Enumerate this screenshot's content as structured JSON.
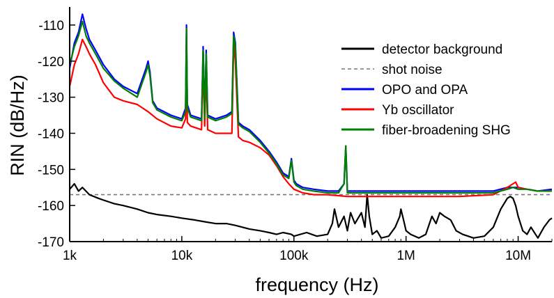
{
  "chart_data": {
    "type": "line",
    "title": "",
    "xlabel": "frequency (Hz)",
    "ylabel": "RIN (dB/Hz)",
    "x_scale": "log",
    "xlim": [
      1000,
      20000000
    ],
    "ylim": [
      -170,
      -105
    ],
    "x_ticks": [
      {
        "value": 1000,
        "label": "1k"
      },
      {
        "value": 10000,
        "label": "10k"
      },
      {
        "value": 100000,
        "label": "100k"
      },
      {
        "value": 1000000,
        "label": "1M"
      },
      {
        "value": 10000000,
        "label": "10M"
      }
    ],
    "y_ticks": [
      {
        "value": -110,
        "label": "-110"
      },
      {
        "value": -120,
        "label": "-120"
      },
      {
        "value": -130,
        "label": "-130"
      },
      {
        "value": -140,
        "label": "-140"
      },
      {
        "value": -150,
        "label": "-150"
      },
      {
        "value": -160,
        "label": "-160"
      },
      {
        "value": -170,
        "label": "-170"
      }
    ],
    "grid": false,
    "legend_position": "top-right",
    "series": [
      {
        "name": "detector background",
        "color": "#000000",
        "style": "solid",
        "x": [
          1000,
          1100,
          1200,
          1300,
          1500,
          1800,
          2000,
          2500,
          3000,
          4000,
          5000,
          6000,
          8000,
          10000,
          13000,
          16000,
          20000,
          25000,
          30000,
          40000,
          50000,
          60000,
          70000,
          80000,
          95000,
          100000,
          130000,
          160000,
          200000,
          220000,
          230000,
          250000,
          280000,
          300000,
          320000,
          350000,
          400000,
          430000,
          450000,
          470000,
          500000,
          550000,
          600000,
          700000,
          800000,
          880000,
          900000,
          950000,
          1000000,
          1100000,
          1300000,
          1500000,
          1700000,
          1850000,
          2000000,
          2200000,
          2500000,
          2800000,
          3200000,
          4000000,
          5000000,
          6000000,
          7000000,
          8000000,
          8500000,
          9000000,
          9500000,
          10000000,
          11000000,
          12000000,
          13000000,
          15000000,
          17000000,
          19000000,
          20000000
        ],
        "values": [
          -155.5,
          -154,
          -156,
          -155,
          -157,
          -158,
          -158.5,
          -159.5,
          -160,
          -161,
          -162,
          -162.5,
          -163,
          -163.5,
          -164,
          -164.5,
          -165,
          -165,
          -165.5,
          -166.5,
          -167,
          -167.5,
          -168,
          -167.5,
          -168,
          -168.5,
          -167.5,
          -168.5,
          -168,
          -165,
          -161,
          -166,
          -163,
          -167,
          -162,
          -165,
          -162,
          -166,
          -157,
          -163,
          -168,
          -167,
          -169,
          -168.5,
          -166,
          -163,
          -161,
          -164,
          -167,
          -168,
          -169,
          -168,
          -163,
          -165,
          -162,
          -163,
          -164,
          -167,
          -168,
          -169,
          -168.5,
          -166,
          -161,
          -158,
          -157.5,
          -158,
          -160,
          -163,
          -167,
          -168,
          -166,
          -169,
          -166,
          -164,
          -163.5
        ]
      },
      {
        "name": "shot noise",
        "color": "#777777",
        "style": "dashed",
        "x": [
          1000,
          20000000
        ],
        "values": [
          -157,
          -157
        ]
      },
      {
        "name": "OPO and OPA",
        "color": "#0000ff",
        "style": "solid",
        "x": [
          1000,
          1100,
          1200,
          1300,
          1400,
          1500,
          1700,
          2000,
          2500,
          3000,
          4000,
          4800,
          5000,
          5200,
          5500,
          6000,
          8000,
          10000,
          10800,
          11000,
          11200,
          12000,
          15000,
          15500,
          16000,
          16500,
          17000,
          20000,
          25000,
          28000,
          29000,
          30000,
          32000,
          35000,
          40000,
          50000,
          60000,
          70000,
          80000,
          90000,
          95000,
          100000,
          105000,
          120000,
          150000,
          200000,
          250000,
          280000,
          290000,
          300000,
          350000,
          400000,
          450000,
          500000,
          600000,
          800000,
          1000000,
          2000000,
          4000000,
          6000000,
          8000000,
          9000000,
          10000000,
          12000000,
          15000000,
          20000000
        ],
        "values": [
          -122,
          -115,
          -112,
          -107,
          -111,
          -114,
          -117,
          -121,
          -125,
          -127,
          -129,
          -122,
          -120,
          -123,
          -131,
          -133,
          -135,
          -136,
          -133,
          -110,
          -132,
          -135,
          -136,
          -116,
          -135,
          -117,
          -135,
          -136,
          -135,
          -134,
          -112,
          -115,
          -137,
          -138,
          -139,
          -142,
          -145,
          -148,
          -151,
          -152,
          -147,
          -153,
          -154,
          -155,
          -155.5,
          -156,
          -156,
          -154,
          -143.5,
          -156,
          -156,
          -156,
          -156,
          -156,
          -156,
          -156,
          -156,
          -156,
          -156,
          -156,
          -155,
          -155,
          -155,
          -155.5,
          -156,
          -155.5
        ]
      },
      {
        "name": "Yb oscillator",
        "color": "#ff0000",
        "style": "solid",
        "x": [
          1000,
          1100,
          1200,
          1300,
          1400,
          1500,
          1700,
          2000,
          2500,
          3000,
          4000,
          5000,
          6000,
          8000,
          10000,
          10800,
          11000,
          11200,
          12000,
          15000,
          15500,
          16000,
          16500,
          17000,
          20000,
          25000,
          28000,
          29000,
          30000,
          32000,
          35000,
          40000,
          50000,
          60000,
          70000,
          80000,
          90000,
          100000,
          120000,
          150000,
          200000,
          300000,
          500000,
          1000000,
          3000000,
          6000000,
          8000000,
          9000000,
          9500000,
          10000000,
          12000000,
          15000000,
          20000000
        ],
        "values": [
          -127,
          -121,
          -118,
          -114,
          -116,
          -118,
          -121,
          -126,
          -130,
          -131,
          -132,
          -134,
          -136,
          -138,
          -138.5,
          -136,
          -115,
          -137,
          -138,
          -139,
          -120,
          -138,
          -122,
          -139,
          -140,
          -140,
          -140,
          -115,
          -120,
          -141,
          -142,
          -142.5,
          -144,
          -146,
          -149,
          -152,
          -154,
          -155.5,
          -156.5,
          -157,
          -157,
          -157.5,
          -157.5,
          -157.5,
          -157.5,
          -157,
          -155,
          -154,
          -153.5,
          -155,
          -155.5,
          -156,
          -156
        ]
      },
      {
        "name": "fiber-broadening SHG",
        "color": "#008000",
        "style": "solid",
        "x": [
          1000,
          1100,
          1200,
          1300,
          1400,
          1500,
          1700,
          2000,
          2500,
          3000,
          4000,
          4800,
          5000,
          5200,
          5500,
          6000,
          8000,
          10000,
          10800,
          11000,
          11200,
          12000,
          15000,
          15500,
          16000,
          16500,
          17000,
          20000,
          25000,
          28000,
          29000,
          30000,
          32000,
          35000,
          40000,
          50000,
          60000,
          70000,
          80000,
          90000,
          95000,
          100000,
          105000,
          120000,
          150000,
          200000,
          250000,
          280000,
          290000,
          300000,
          350000,
          400000,
          450000,
          500000,
          600000,
          800000,
          1000000,
          2000000,
          4000000,
          6000000,
          8000000,
          9000000,
          10000000,
          12000000,
          15000000,
          20000000
        ],
        "values": [
          -121,
          -116,
          -113,
          -109,
          -113,
          -115,
          -118,
          -122,
          -125.5,
          -127.5,
          -130,
          -123,
          -121,
          -124,
          -131.5,
          -133.5,
          -135.5,
          -136.5,
          -134,
          -111,
          -133,
          -135.5,
          -136.5,
          -117,
          -136,
          -118,
          -135.5,
          -136.5,
          -135.5,
          -134.5,
          -113,
          -116,
          -137.5,
          -138.5,
          -139.5,
          -142.5,
          -145.5,
          -148.5,
          -151.5,
          -152.5,
          -147.5,
          -153.5,
          -154.5,
          -155.5,
          -156,
          -156.5,
          -156.5,
          -154,
          -143.5,
          -156.5,
          -156.5,
          -156.5,
          -156.5,
          -156.5,
          -156.5,
          -156.5,
          -156.5,
          -156.5,
          -156.5,
          -156.5,
          -155.5,
          -155,
          -155.5,
          -155.5,
          -156,
          -156
        ]
      }
    ]
  }
}
